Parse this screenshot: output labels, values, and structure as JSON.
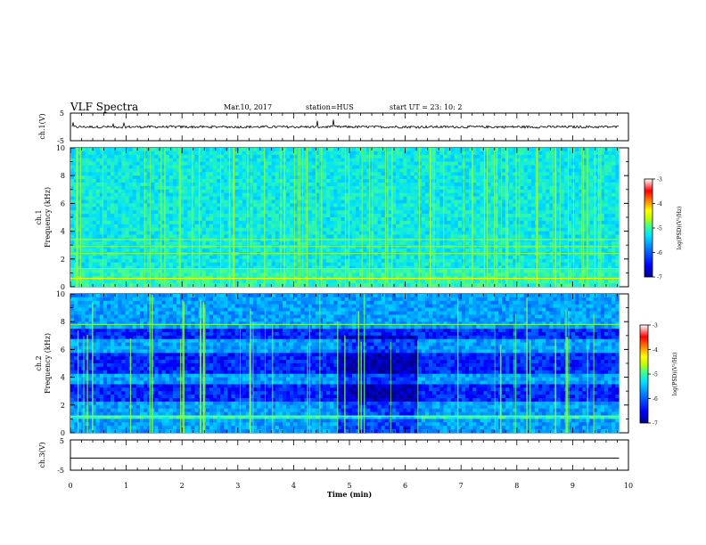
{
  "header": {
    "title": "VLF Spectra",
    "date": "Mar.10, 2017",
    "station": "station=HUS",
    "start_ut": "start  UT =   23: 10: 2"
  },
  "chart_data": [
    {
      "type": "line",
      "id": "ch1-waveform",
      "ylabel": "ch.1(V)",
      "ylim": [
        -5,
        5
      ],
      "yticks": [
        "5",
        "-5"
      ],
      "xlim": [
        0,
        10
      ],
      "description_level": 0.0
    },
    {
      "type": "heatmap",
      "id": "ch1-spectrogram",
      "ylabel_line1": "ch.1",
      "ylabel_line2": "Frequency (kHz)",
      "ylim": [
        0,
        10
      ],
      "yticks": [
        "0",
        "2",
        "4",
        "6",
        "8",
        "10"
      ],
      "xlim": [
        0,
        10
      ],
      "data_end_min": 9.83,
      "colorbar": {
        "label": "log(PSD)(V²/Hz)",
        "range": [
          -7,
          -3
        ],
        "ticks": [
          "-3",
          "-4",
          "-5",
          "-6",
          "-7"
        ]
      }
    },
    {
      "type": "heatmap",
      "id": "ch2-spectrogram",
      "ylabel_line1": "ch.2",
      "ylabel_line2": "Frequency (kHz)",
      "ylim": [
        0,
        10
      ],
      "yticks": [
        "0",
        "2",
        "4",
        "6",
        "8",
        "10"
      ],
      "xlim": [
        0,
        10
      ],
      "data_end_min": 9.83,
      "colorbar": {
        "label": "log(PSD)(V²/Hz)",
        "range": [
          -7,
          -3
        ],
        "ticks": [
          "-3",
          "-4",
          "-5",
          "-6",
          "-7"
        ]
      }
    },
    {
      "type": "line",
      "id": "ch3-waveform",
      "ylabel": "ch.3(V)",
      "ylim": [
        -5,
        5
      ],
      "yticks": [
        "5",
        "-5"
      ],
      "xlim": [
        0,
        10
      ],
      "level": -1.0,
      "xlabel": "Time  (min)",
      "xticks": [
        "0",
        "1",
        "2",
        "3",
        "4",
        "5",
        "6",
        "7",
        "8",
        "9",
        "10"
      ]
    }
  ],
  "colors": {
    "colormap": [
      "#00008c",
      "#0000ff",
      "#0080ff",
      "#00e0ff",
      "#40ff90",
      "#c0ff00",
      "#ffff00",
      "#ff8000",
      "#ff0000",
      "#ffffff"
    ],
    "background": "#ffffff",
    "axis": "#000000"
  }
}
